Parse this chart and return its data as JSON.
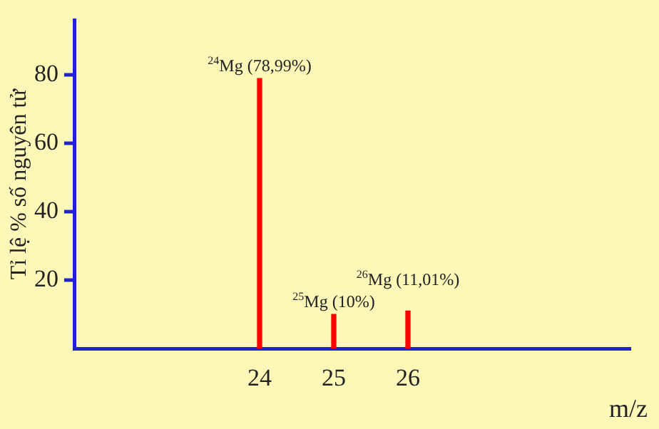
{
  "chart_data": {
    "type": "bar",
    "xlabel": "m/z",
    "ylabel": "Tỉ lệ % số nguyên tử",
    "x": [
      24,
      25,
      26
    ],
    "values": [
      78.99,
      10,
      11.01
    ],
    "color": "#ff0000",
    "value_labels": [
      "$^{24}$Mg (78,99%)",
      "$^{25}$Mg (10%)",
      "$^{26}$Mg (11,01%)"
    ],
    "xlim": [
      21.5,
      29
    ],
    "xticks": [
      24,
      25,
      26
    ],
    "ylim": [
      0,
      96
    ],
    "yticks": [
      20,
      40,
      60,
      80
    ],
    "grid": false,
    "legend": false
  }
}
